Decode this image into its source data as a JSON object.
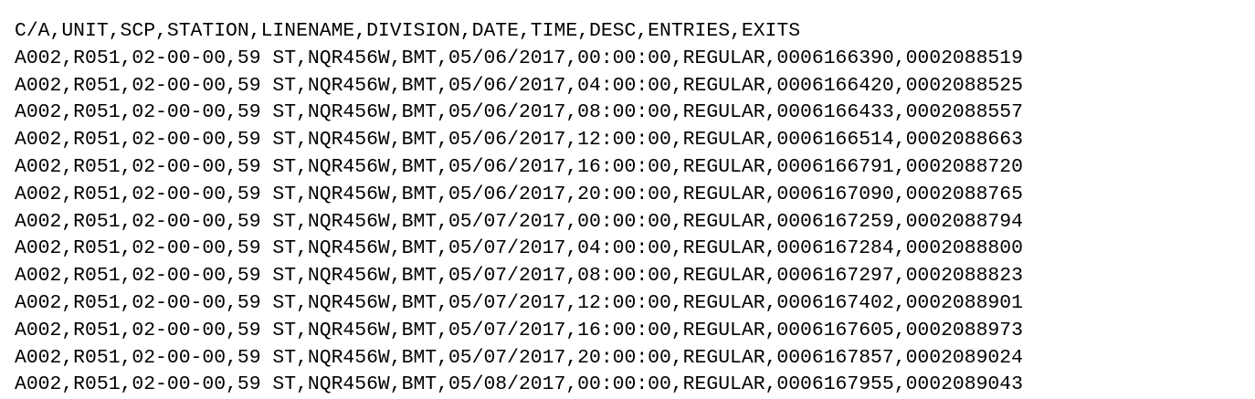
{
  "header": "C/A,UNIT,SCP,STATION,LINENAME,DIVISION,DATE,TIME,DESC,ENTRIES,EXITS",
  "rows": [
    "A002,R051,02-00-00,59 ST,NQR456W,BMT,05/06/2017,00:00:00,REGULAR,0006166390,0002088519",
    "A002,R051,02-00-00,59 ST,NQR456W,BMT,05/06/2017,04:00:00,REGULAR,0006166420,0002088525",
    "A002,R051,02-00-00,59 ST,NQR456W,BMT,05/06/2017,08:00:00,REGULAR,0006166433,0002088557",
    "A002,R051,02-00-00,59 ST,NQR456W,BMT,05/06/2017,12:00:00,REGULAR,0006166514,0002088663",
    "A002,R051,02-00-00,59 ST,NQR456W,BMT,05/06/2017,16:00:00,REGULAR,0006166791,0002088720",
    "A002,R051,02-00-00,59 ST,NQR456W,BMT,05/06/2017,20:00:00,REGULAR,0006167090,0002088765",
    "A002,R051,02-00-00,59 ST,NQR456W,BMT,05/07/2017,00:00:00,REGULAR,0006167259,0002088794",
    "A002,R051,02-00-00,59 ST,NQR456W,BMT,05/07/2017,04:00:00,REGULAR,0006167284,0002088800",
    "A002,R051,02-00-00,59 ST,NQR456W,BMT,05/07/2017,08:00:00,REGULAR,0006167297,0002088823",
    "A002,R051,02-00-00,59 ST,NQR456W,BMT,05/07/2017,12:00:00,REGULAR,0006167402,0002088901",
    "A002,R051,02-00-00,59 ST,NQR456W,BMT,05/07/2017,16:00:00,REGULAR,0006167605,0002088973",
    "A002,R051,02-00-00,59 ST,NQR456W,BMT,05/07/2017,20:00:00,REGULAR,0006167857,0002089024",
    "A002,R051,02-00-00,59 ST,NQR456W,BMT,05/08/2017,00:00:00,REGULAR,0006167955,0002089043"
  ]
}
